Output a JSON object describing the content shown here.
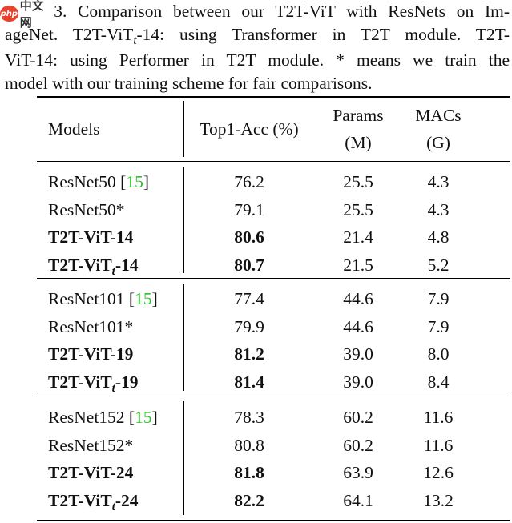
{
  "caption": {
    "lines": [
      "Table 3. Comparison between our T2T-ViT with ResNets on Im-",
      "ageNet.  T2T-ViT",
      "-14:  using Transformer in T2T module.  T2T-",
      "ViT-14:  using Performer in T2T module.  * means we train the",
      "model with our training scheme for fair comparisons."
    ],
    "subscript": "t"
  },
  "watermark": {
    "logo": "php",
    "text": "中文网"
  },
  "table": {
    "headers": {
      "models": "Models",
      "top1": "Top1-Acc (%)",
      "params_l1": "Params",
      "params_l2": "(M)",
      "macs_l1": "MACs",
      "macs_l2": "(G)"
    },
    "subscript": "t",
    "groups": [
      {
        "rows": [
          {
            "model": "ResNet50",
            "cite": "15",
            "bold": false,
            "t": false,
            "suffix": "",
            "top1": "76.2",
            "params": "25.5",
            "macs": "4.3"
          },
          {
            "model": "ResNet50*",
            "cite": "",
            "bold": false,
            "t": false,
            "suffix": "",
            "top1": "79.1",
            "params": "25.5",
            "macs": "4.3"
          },
          {
            "model": "T2T-ViT-14",
            "cite": "",
            "bold": true,
            "t": false,
            "suffix": "",
            "top1": "80.6",
            "params": "21.4",
            "macs": "4.8"
          },
          {
            "model": "T2T-ViT",
            "cite": "",
            "bold": true,
            "t": true,
            "suffix": "-14",
            "top1": "80.7",
            "params": "21.5",
            "macs": "5.2"
          }
        ]
      },
      {
        "rows": [
          {
            "model": "ResNet101",
            "cite": "15",
            "bold": false,
            "t": false,
            "suffix": "",
            "top1": "77.4",
            "params": "44.6",
            "macs": "7.9"
          },
          {
            "model": "ResNet101*",
            "cite": "",
            "bold": false,
            "t": false,
            "suffix": "",
            "top1": "79.9",
            "params": "44.6",
            "macs": "7.9"
          },
          {
            "model": "T2T-ViT-19",
            "cite": "",
            "bold": true,
            "t": false,
            "suffix": "",
            "top1": "81.2",
            "params": "39.0",
            "macs": "8.0"
          },
          {
            "model": "T2T-ViT",
            "cite": "",
            "bold": true,
            "t": true,
            "suffix": "-19",
            "top1": "81.4",
            "params": "39.0",
            "macs": "8.4"
          }
        ]
      },
      {
        "rows": [
          {
            "model": "ResNet152",
            "cite": "15",
            "bold": false,
            "t": false,
            "suffix": "",
            "top1": "78.3",
            "params": "60.2",
            "macs": "11.6"
          },
          {
            "model": "ResNet152*",
            "cite": "",
            "bold": false,
            "t": false,
            "suffix": "",
            "top1": "80.8",
            "params": "60.2",
            "macs": "11.6"
          },
          {
            "model": "T2T-ViT-24",
            "cite": "",
            "bold": true,
            "t": false,
            "suffix": "",
            "top1": "81.8",
            "params": "63.9",
            "macs": "12.6"
          },
          {
            "model": "T2T-ViT",
            "cite": "",
            "bold": true,
            "t": true,
            "suffix": "-24",
            "top1": "82.2",
            "params": "64.1",
            "macs": "13.2"
          }
        ]
      }
    ]
  }
}
